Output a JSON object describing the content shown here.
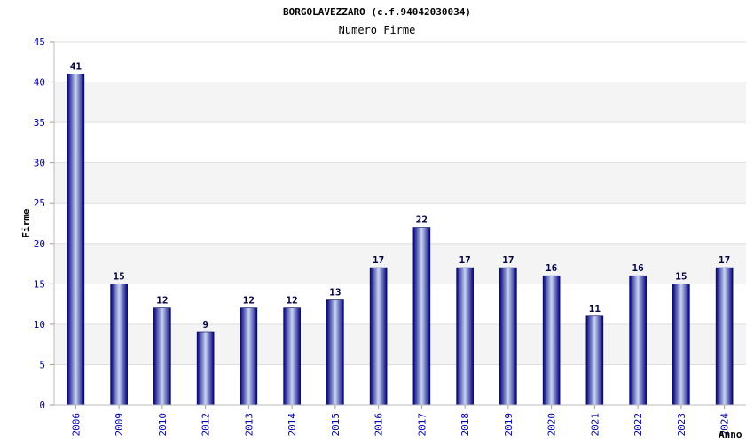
{
  "chart_data": {
    "type": "bar",
    "title": "BORGOLAVEZZARO (c.f.94042030034)",
    "subtitle": "Numero Firme",
    "xlabel": "Anno",
    "ylabel": "Firme",
    "categories": [
      "2006",
      "2009",
      "2010",
      "2012",
      "2013",
      "2014",
      "2015",
      "2016",
      "2017",
      "2018",
      "2019",
      "2020",
      "2021",
      "2022",
      "2023",
      "2024"
    ],
    "values": [
      41,
      15,
      12,
      9,
      12,
      12,
      13,
      17,
      22,
      17,
      17,
      16,
      11,
      16,
      15,
      17
    ],
    "ylim": [
      0,
      45
    ],
    "yticks": [
      0,
      5,
      10,
      15,
      20,
      25,
      30,
      35,
      40,
      45
    ],
    "grid": true,
    "colors": {
      "bar_dark": "#00007a",
      "bar_light": "#c8d4f4",
      "band": "#f4f4f4",
      "grid": "#dddddd",
      "tick": "#0000aa"
    }
  }
}
